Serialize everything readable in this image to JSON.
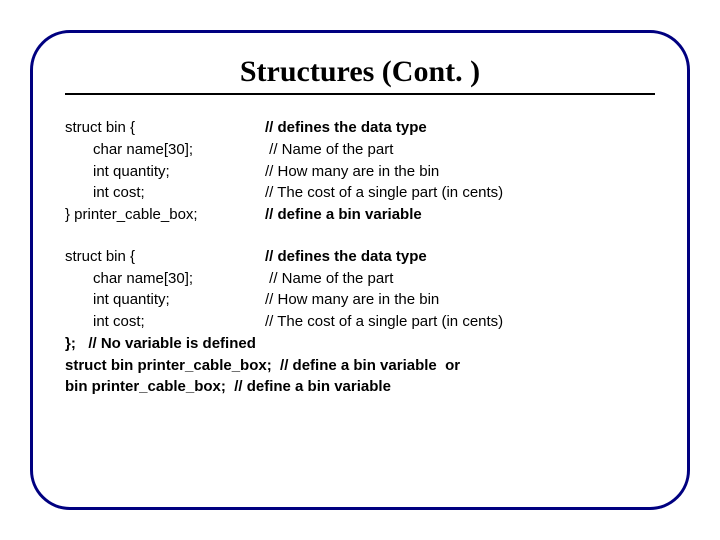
{
  "title": "Structures (Cont. )",
  "block1": {
    "l1_left": "struct bin {",
    "l1_right": "// defines the data type",
    "l2_left": "char name[30];",
    "l2_right": " // Name of the part",
    "l3_left": "int quantity;",
    "l3_right": "// How many are in the bin",
    "l4_left": "int cost;",
    "l4_right": "// The cost of a single part (in cents)",
    "l5_left": "} printer_cable_box;",
    "l5_right": "// define a bin variable"
  },
  "block2": {
    "l1_left": "struct bin {",
    "l1_right": "// defines the data type",
    "l2_left": "char name[30];",
    "l2_right": " // Name of the part",
    "l3_left": "int quantity;",
    "l3_right": "// How many are in the bin",
    "l4_left": "int cost;",
    "l4_right": "// The cost of a single part (in cents)",
    "l5": "};   // No variable is defined",
    "l6": "struct bin printer_cable_box;  // define a bin variable  or",
    "l7": "bin printer_cable_box;  // define a bin variable"
  },
  "colors": {
    "frame_border": "#000080",
    "title_text": "#000000",
    "body_text": "#000000",
    "background": "#ffffff"
  },
  "fonts": {
    "title_family": "Times New Roman",
    "title_size_pt": 30,
    "body_family": "Arial",
    "body_size_pt": 15
  }
}
